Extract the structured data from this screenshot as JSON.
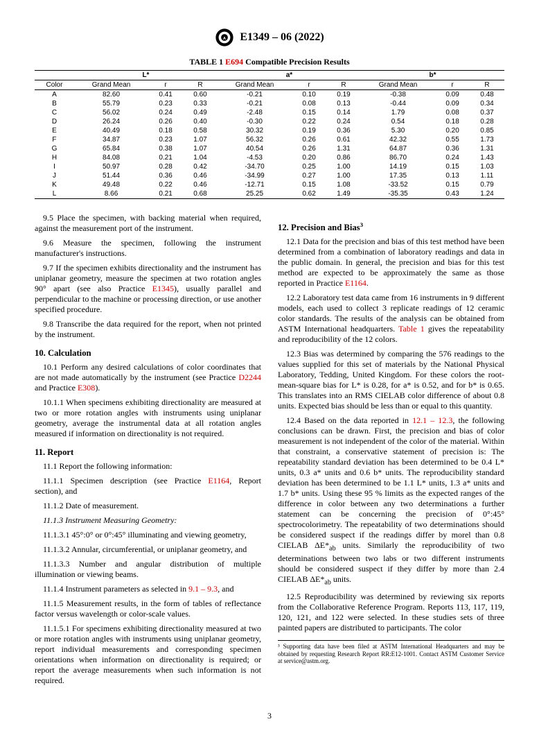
{
  "doc": {
    "designation": "E1349 – 06 (2022)",
    "page_num": "3"
  },
  "table": {
    "caption_prefix": "TABLE 1 ",
    "caption_ref": "E694",
    "caption_suffix": " Compatible Precision Results",
    "groups": [
      "L*",
      "a*",
      "b*"
    ],
    "subcols": [
      "Grand Mean",
      "r",
      "R"
    ],
    "color_label": "Color",
    "rows": [
      {
        "c": "A",
        "L": [
          "82.60",
          "0.41",
          "0.60"
        ],
        "a": [
          "-0.21",
          "0.10",
          "0.19"
        ],
        "b": [
          "-0.38",
          "0.09",
          "0.48"
        ]
      },
      {
        "c": "B",
        "L": [
          "55.79",
          "0.23",
          "0.33"
        ],
        "a": [
          "-0.21",
          "0.08",
          "0.13"
        ],
        "b": [
          "-0.44",
          "0.09",
          "0.34"
        ]
      },
      {
        "c": "C",
        "L": [
          "56.02",
          "0.24",
          "0.49"
        ],
        "a": [
          "-2.48",
          "0.15",
          "0.14"
        ],
        "b": [
          "1.79",
          "0.08",
          "0.37"
        ]
      },
      {
        "c": "D",
        "L": [
          "26.24",
          "0.26",
          "0.40"
        ],
        "a": [
          "-0.30",
          "0.22",
          "0.24"
        ],
        "b": [
          "0.54",
          "0.18",
          "0.28"
        ]
      },
      {
        "c": "E",
        "L": [
          "40.49",
          "0.18",
          "0.58"
        ],
        "a": [
          "30.32",
          "0.19",
          "0.36"
        ],
        "b": [
          "5.30",
          "0.20",
          "0.85"
        ]
      },
      {
        "c": "F",
        "L": [
          "34.87",
          "0.23",
          "1.07"
        ],
        "a": [
          "56.32",
          "0.26",
          "0.61"
        ],
        "b": [
          "42.32",
          "0.55",
          "1.73"
        ]
      },
      {
        "c": "G",
        "L": [
          "65.84",
          "0.38",
          "1.07"
        ],
        "a": [
          "40.54",
          "0.26",
          "1.31"
        ],
        "b": [
          "64.87",
          "0.36",
          "1.31"
        ]
      },
      {
        "c": "H",
        "L": [
          "84.08",
          "0.21",
          "1.04"
        ],
        "a": [
          "-4.53",
          "0.20",
          "0.86"
        ],
        "b": [
          "86.70",
          "0.24",
          "1.43"
        ]
      },
      {
        "c": "I",
        "L": [
          "50.97",
          "0.28",
          "0.42"
        ],
        "a": [
          "-34.70",
          "0.25",
          "1.00"
        ],
        "b": [
          "14.19",
          "0.15",
          "1.03"
        ]
      },
      {
        "c": "J",
        "L": [
          "51.44",
          "0.36",
          "0.46"
        ],
        "a": [
          "-34.99",
          "0.27",
          "1.00"
        ],
        "b": [
          "17.35",
          "0.13",
          "1.11"
        ]
      },
      {
        "c": "K",
        "L": [
          "49.48",
          "0.22",
          "0.46"
        ],
        "a": [
          "-12.71",
          "0.15",
          "1.08"
        ],
        "b": [
          "-33.52",
          "0.15",
          "0.79"
        ]
      },
      {
        "c": "L",
        "L": [
          "8.66",
          "0.21",
          "0.68"
        ],
        "a": [
          "25.25",
          "0.62",
          "1.49"
        ],
        "b": [
          "-35.35",
          "0.43",
          "1.24"
        ]
      }
    ]
  },
  "left": {
    "p9_5": "9.5 Place the specimen, with backing material when required, against the measurement port of the instrument.",
    "p9_6": "9.6 Measure the specimen, following the instrument manufacturer's instructions.",
    "p9_7a": "9.7 If the specimen exhibits directionality and the instrument has uniplanar geometry, measure the specimen at two rotation angles 90° apart (see also Practice ",
    "p9_7_ref": "E1345",
    "p9_7b": "), usually parallel and perpendicular to the machine or processing direction, or use another specified procedure.",
    "p9_8": "9.8 Transcribe the data required for the report, when not printed by the instrument.",
    "h10": "10. Calculation",
    "p10_1a": "10.1 Perform any desired calculations of color coordinates that are not made automatically by the instrument (see Practice ",
    "p10_1_ref1": "D2244",
    "p10_1_mid": " and Practice ",
    "p10_1_ref2": "E308",
    "p10_1b": ").",
    "p10_1_1": "10.1.1 When specimens exhibiting directionality are measured at two or more rotation angles with instruments using uniplanar geometry, average the instrumental data at all rotation angles measured if information on directionality is not required.",
    "h11": "11. Report",
    "p11_1": "11.1 Report the following information:",
    "p11_1_1a": "11.1.1 Specimen description (see Practice ",
    "p11_1_1_ref": "E1164",
    "p11_1_1b": ", Report section), and",
    "p11_1_2": "11.1.2 Date of measurement.",
    "p11_1_3": "11.1.3 Instrument Measuring Geometry:",
    "p11_1_3_1": "11.1.3.1 45°:0° or 0°:45° illuminating and viewing geometry,",
    "p11_1_3_2": "11.1.3.2 Annular, circumferential, or uniplanar geometry, and",
    "p11_1_3_3": "11.1.3.3 Number and angular distribution of multiple illumination or viewing beams.",
    "p11_1_4a": "11.1.4 Instrument parameters as selected in ",
    "p11_1_4_ref": "9.1 – 9.3",
    "p11_1_4b": ", and",
    "p11_1_5": "11.1.5 Measurement results, in the form of tables of reflectance factor versus wavelength or color-scale values.",
    "p11_1_5_1": "11.1.5.1 For specimens exhibiting directionality measured at two or more rotation angles with instruments using uniplanar geometry, report individual measurements and corresponding specimen orientations when information on directionality is required; or report the average measurements when such information is not required."
  },
  "right": {
    "h12": "12. Precision and Bias",
    "h12_sup": "3",
    "p12_1a": "12.1 Data for the precision and bias of this test method have been determined from a combination of laboratory readings and data in the public domain. In general, the precision and bias for this test method are expected to be approximately the same as those reported in Practice ",
    "p12_1_ref": "E1164",
    "p12_1b": ".",
    "p12_2a": "12.2 Laboratory test data came from 16 instruments in 9 different models, each used to collect 3 replicate readings of 12 ceramic color standards. The results of the analysis can be obtained from ASTM International headquarters. ",
    "p12_2_ref": "Table 1",
    "p12_2b": " gives the repeatability and reproducibility of the 12 colors.",
    "p12_3": "12.3 Bias was determined by comparing the 576 readings to the values supplied for this set of materials by the National Physical Laboratory, Tedding, United Kingdom. For these colors the root-mean-square bias for L* is 0.28, for a* is 0.52, and for b* is 0.65. This translates into an RMS CIELAB color difference of about 0.8 units. Expected bias should be less than or equal to this quantity.",
    "p12_4a": "12.4 Based on the data reported in ",
    "p12_4_ref": "12.1 – 12.3",
    "p12_4b": ", the following conclusions can be drawn. First, the precision and bias of color measurement is not independent of the color of the material. Within that constraint, a conservative statement of precision is: The repeatability standard deviation has been determined to be 0.4 L* units, 0.3 a* units and 0.6 b* units. The reproducibility standard deviation has been determined to be 1.1 L* units, 1.3 a* units and 1.7 b* units. Using these 95 % limits as the expected ranges of the difference in color between any two determinations a further statement can be concerning the precision of 0°:45° spectrocolorimetry. The repeatability of two determinations should be considered suspect if the readings differ by morel than 0.8 CIELAB ΔE*",
    "p12_4_sub1": "ab",
    "p12_4c": " units. Similarly the reproducibility of two determinations between two labs or two different instruments should be considered suspect if they differ by more than 2.4 CIELAB ΔE*",
    "p12_4_sub2": "ab",
    "p12_4d": " units.",
    "p12_5": "12.5 Reproducibility was determined by reviewing six reports from the Collaborative Reference Program. Reports 113, 117, 119, 120, 121, and 122 were selected. In these studies sets of three painted papers are distributed to participants. The color",
    "footnote": "³ Supporting data have been filed at ASTM International Headquarters and may be obtained by requesting Research Report RR:E12-1001. Contact ASTM Customer Service at service@astm.org."
  }
}
